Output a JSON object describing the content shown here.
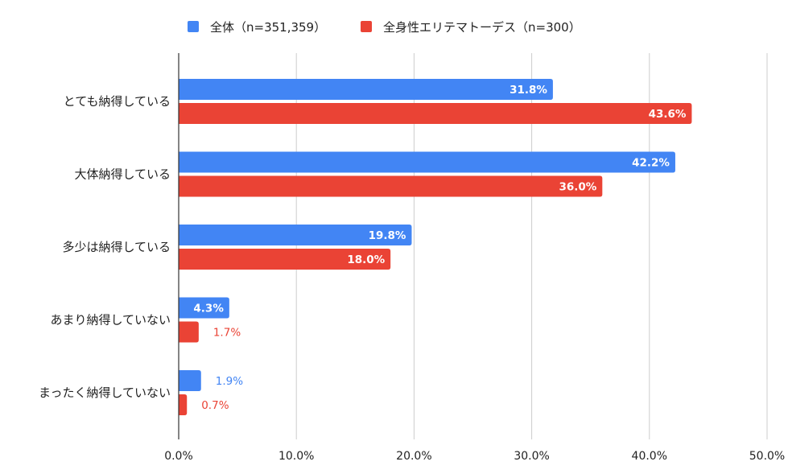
{
  "chart_data": {
    "type": "bar",
    "orientation": "horizontal",
    "categories": [
      "とても納得している",
      "大体納得している",
      "多少は納得している",
      "あまり納得していない",
      "まったく納得していない"
    ],
    "series": [
      {
        "name": "全体（n=351,359）",
        "color": "#4285f4",
        "values": [
          31.8,
          42.2,
          19.8,
          4.3,
          1.9
        ],
        "labels": [
          "31.8%",
          "42.2%",
          "19.8%",
          "4.3%",
          "1.9%"
        ]
      },
      {
        "name": "全身性エリテマトーデス（n=300）",
        "color": "#ea4335",
        "values": [
          43.6,
          36.0,
          18.0,
          1.7,
          0.7
        ],
        "labels": [
          "43.6%",
          "36.0%",
          "18.0%",
          "1.7%",
          "0.7%"
        ]
      }
    ],
    "xlim": [
      0,
      50
    ],
    "xticks": [
      0,
      10,
      20,
      30,
      40,
      50
    ],
    "xtick_labels": [
      "0.0%",
      "10.0%",
      "20.0%",
      "30.0%",
      "40.0%",
      "50.0%"
    ],
    "legend_position": "top",
    "grid": true,
    "title": "",
    "xlabel": "",
    "ylabel": ""
  }
}
